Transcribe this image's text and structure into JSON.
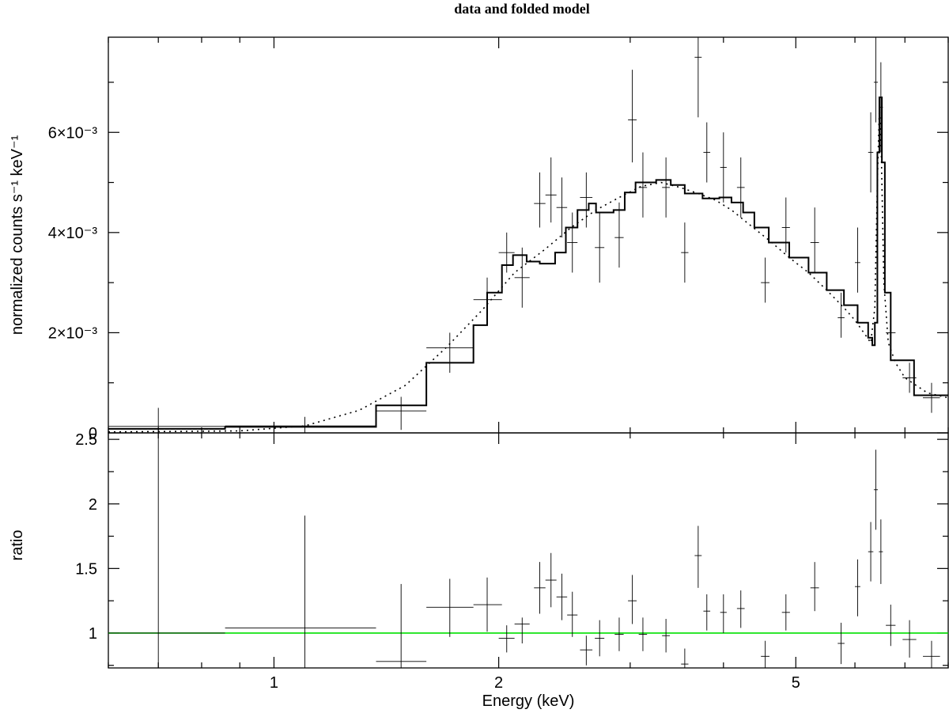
{
  "chart_data": {
    "type": "scatter",
    "title": "data and folded model",
    "xlabel": "Energy (keV)",
    "xscale": "log",
    "xlim": [
      0.6,
      8.0
    ],
    "x_ticks": [
      1,
      2,
      5
    ],
    "x_tick_labels": [
      "1",
      "2",
      "5"
    ],
    "grid": false,
    "legend": "none",
    "panels": [
      {
        "name": "spectrum",
        "ylabel": "normalized counts s⁻¹ keV⁻¹",
        "ylim": [
          0,
          0.0079
        ],
        "y_ticks": [
          0,
          0.002,
          0.004,
          0.006
        ],
        "y_tick_labels": [
          "0",
          "2×10⁻³",
          "4×10⁻³",
          "6×10⁻³"
        ],
        "data": [
          {
            "x": 0.7,
            "xlo": 0.55,
            "xhi": 0.86,
            "y": 0.00013,
            "ylo": 0.0,
            "yhi": 0.0005
          },
          {
            "x": 1.1,
            "xlo": 0.86,
            "xhi": 1.37,
            "y": 0.00014,
            "ylo": 0.0,
            "yhi": 0.00032
          },
          {
            "x": 1.48,
            "xlo": 1.37,
            "xhi": 1.6,
            "y": 0.00044,
            "ylo": 6e-05,
            "yhi": 0.00072
          },
          {
            "x": 1.72,
            "xlo": 1.6,
            "xhi": 1.85,
            "y": 0.0017,
            "ylo": 0.0012,
            "yhi": 0.002
          },
          {
            "x": 1.93,
            "xlo": 1.85,
            "xhi": 2.02,
            "y": 0.00266,
            "ylo": 0.0022,
            "yhi": 0.0031
          },
          {
            "x": 2.05,
            "xlo": 2.0,
            "xhi": 2.1,
            "y": 0.0036,
            "ylo": 0.0032,
            "yhi": 0.004
          },
          {
            "x": 2.15,
            "xlo": 2.1,
            "xhi": 2.2,
            "y": 0.0031,
            "ylo": 0.0025,
            "yhi": 0.0037
          },
          {
            "x": 2.27,
            "xlo": 2.23,
            "xhi": 2.31,
            "y": 0.00458,
            "ylo": 0.0041,
            "yhi": 0.0052
          },
          {
            "x": 2.35,
            "xlo": 2.31,
            "xhi": 2.39,
            "y": 0.00475,
            "ylo": 0.0042,
            "yhi": 0.0055
          },
          {
            "x": 2.43,
            "xlo": 2.39,
            "xhi": 2.47,
            "y": 0.0045,
            "ylo": 0.0039,
            "yhi": 0.0051
          },
          {
            "x": 2.51,
            "xlo": 2.47,
            "xhi": 2.55,
            "y": 0.0038,
            "ylo": 0.0032,
            "yhi": 0.0044
          },
          {
            "x": 2.62,
            "xlo": 2.57,
            "xhi": 2.67,
            "y": 0.0047,
            "ylo": 0.0041,
            "yhi": 0.0052
          },
          {
            "x": 2.73,
            "xlo": 2.69,
            "xhi": 2.77,
            "y": 0.0037,
            "ylo": 0.003,
            "yhi": 0.0044
          },
          {
            "x": 2.9,
            "xlo": 2.86,
            "xhi": 2.94,
            "y": 0.0039,
            "ylo": 0.0033,
            "yhi": 0.0046
          },
          {
            "x": 3.02,
            "xlo": 2.98,
            "xhi": 3.06,
            "y": 0.00625,
            "ylo": 0.0054,
            "yhi": 0.00725
          },
          {
            "x": 3.12,
            "xlo": 3.08,
            "xhi": 3.16,
            "y": 0.0049,
            "ylo": 0.0043,
            "yhi": 0.0056
          },
          {
            "x": 3.35,
            "xlo": 3.31,
            "xhi": 3.39,
            "y": 0.0049,
            "ylo": 0.0043,
            "yhi": 0.0055
          },
          {
            "x": 3.55,
            "xlo": 3.51,
            "xhi": 3.59,
            "y": 0.0036,
            "ylo": 0.003,
            "yhi": 0.0042
          },
          {
            "x": 3.7,
            "xlo": 3.66,
            "xhi": 3.74,
            "y": 0.0075,
            "ylo": 0.0063,
            "yhi": 0.0079
          },
          {
            "x": 3.8,
            "xlo": 3.76,
            "xhi": 3.84,
            "y": 0.0056,
            "ylo": 0.005,
            "yhi": 0.0062
          },
          {
            "x": 4.0,
            "xlo": 3.96,
            "xhi": 4.04,
            "y": 0.0053,
            "ylo": 0.0046,
            "yhi": 0.006
          },
          {
            "x": 4.22,
            "xlo": 4.17,
            "xhi": 4.27,
            "y": 0.0049,
            "ylo": 0.0043,
            "yhi": 0.0055
          },
          {
            "x": 4.55,
            "xlo": 4.49,
            "xhi": 4.61,
            "y": 0.003,
            "ylo": 0.0026,
            "yhi": 0.0035
          },
          {
            "x": 4.85,
            "xlo": 4.79,
            "xhi": 4.91,
            "y": 0.0041,
            "ylo": 0.0036,
            "yhi": 0.0047
          },
          {
            "x": 5.3,
            "xlo": 5.23,
            "xhi": 5.37,
            "y": 0.0038,
            "ylo": 0.0032,
            "yhi": 0.0045
          },
          {
            "x": 5.75,
            "xlo": 5.69,
            "xhi": 5.81,
            "y": 0.0023,
            "ylo": 0.0019,
            "yhi": 0.0028
          },
          {
            "x": 6.05,
            "xlo": 6.0,
            "xhi": 6.1,
            "y": 0.0034,
            "ylo": 0.0028,
            "yhi": 0.0041
          },
          {
            "x": 6.3,
            "xlo": 6.25,
            "xhi": 6.35,
            "y": 0.0056,
            "ylo": 0.0048,
            "yhi": 0.0064
          },
          {
            "x": 6.4,
            "xlo": 6.36,
            "xhi": 6.44,
            "y": 0.007,
            "ylo": 0.0062,
            "yhi": 0.0079
          },
          {
            "x": 6.5,
            "xlo": 6.46,
            "xhi": 6.54,
            "y": 0.0065,
            "ylo": 0.0056,
            "yhi": 0.0074
          },
          {
            "x": 6.7,
            "xlo": 6.6,
            "xhi": 6.8,
            "y": 0.002,
            "ylo": 0.0016,
            "yhi": 0.0024
          },
          {
            "x": 7.1,
            "xlo": 6.95,
            "xhi": 7.25,
            "y": 0.0011,
            "ylo": 0.0008,
            "yhi": 0.0014
          },
          {
            "x": 7.6,
            "xlo": 7.4,
            "xhi": 7.8,
            "y": 0.0007,
            "ylo": 0.0004,
            "yhi": 0.001
          }
        ],
        "model_step": [
          [
            0.6,
            8e-05
          ],
          [
            0.86,
            0.00012
          ],
          [
            1.37,
            0.00055
          ],
          [
            1.6,
            0.0014
          ],
          [
            1.85,
            0.00215
          ],
          [
            1.93,
            0.0028
          ],
          [
            2.02,
            0.00335
          ],
          [
            2.09,
            0.00355
          ],
          [
            2.18,
            0.00342
          ],
          [
            2.27,
            0.00338
          ],
          [
            2.38,
            0.0036
          ],
          [
            2.46,
            0.0041
          ],
          [
            2.55,
            0.00445
          ],
          [
            2.64,
            0.00458
          ],
          [
            2.7,
            0.0044
          ],
          [
            2.85,
            0.00445
          ],
          [
            2.95,
            0.0048
          ],
          [
            3.05,
            0.005
          ],
          [
            3.25,
            0.00505
          ],
          [
            3.4,
            0.00495
          ],
          [
            3.55,
            0.00478
          ],
          [
            3.75,
            0.00468
          ],
          [
            3.95,
            0.0047
          ],
          [
            4.1,
            0.0046
          ],
          [
            4.25,
            0.0044
          ],
          [
            4.4,
            0.0041
          ],
          [
            4.6,
            0.0038
          ],
          [
            4.9,
            0.0035
          ],
          [
            5.2,
            0.0032
          ],
          [
            5.5,
            0.00285
          ],
          [
            5.8,
            0.00255
          ],
          [
            6.05,
            0.0022
          ],
          [
            6.25,
            0.0019
          ],
          [
            6.33,
            0.00175
          ],
          [
            6.38,
            0.0022
          ],
          [
            6.43,
            0.0056
          ],
          [
            6.47,
            0.0067
          ],
          [
            6.52,
            0.0054
          ],
          [
            6.58,
            0.0028
          ],
          [
            6.7,
            0.00145
          ],
          [
            7.2,
            0.00075
          ],
          [
            8.0,
            0.00075
          ]
        ],
        "model_smooth": [
          [
            0.6,
            2e-05
          ],
          [
            0.9,
            4e-05
          ],
          [
            1.1,
            0.00014
          ],
          [
            1.3,
            0.00045
          ],
          [
            1.5,
            0.00095
          ],
          [
            1.7,
            0.0017
          ],
          [
            1.9,
            0.00245
          ],
          [
            2.1,
            0.0032
          ],
          [
            2.3,
            0.00365
          ],
          [
            2.5,
            0.0041
          ],
          [
            2.7,
            0.00445
          ],
          [
            2.9,
            0.0047
          ],
          [
            3.1,
            0.00492
          ],
          [
            3.3,
            0.005
          ],
          [
            3.5,
            0.0049
          ],
          [
            3.7,
            0.00478
          ],
          [
            3.9,
            0.00465
          ],
          [
            4.1,
            0.00445
          ],
          [
            4.3,
            0.0042
          ],
          [
            4.6,
            0.00385
          ],
          [
            4.9,
            0.0035
          ],
          [
            5.2,
            0.0032
          ],
          [
            5.5,
            0.00285
          ],
          [
            5.8,
            0.0025
          ],
          [
            6.0,
            0.00225
          ],
          [
            6.2,
            0.00195
          ],
          [
            6.3,
            0.0018
          ],
          [
            6.38,
            0.0025
          ],
          [
            6.43,
            0.005
          ],
          [
            6.47,
            0.0065
          ],
          [
            6.51,
            0.0055
          ],
          [
            6.56,
            0.003
          ],
          [
            6.65,
            0.0018
          ],
          [
            6.8,
            0.0014
          ],
          [
            7.0,
            0.0011
          ],
          [
            7.5,
            0.0008
          ],
          [
            8.0,
            0.0007
          ]
        ]
      },
      {
        "name": "ratio",
        "ylabel": "ratio",
        "ylim": [
          0.73,
          2.55
        ],
        "y_ticks": [
          1,
          1.5,
          2,
          2.5
        ],
        "y_tick_labels": [
          "1",
          "1.5",
          "2",
          "2.5"
        ],
        "reference_line": 1,
        "data": [
          {
            "x": 0.7,
            "xlo": 0.55,
            "xhi": 0.86,
            "y": 1.0,
            "ylo": 0.73,
            "yhi": 2.55
          },
          {
            "x": 1.1,
            "xlo": 0.86,
            "xhi": 1.37,
            "y": 1.04,
            "ylo": 0.73,
            "yhi": 1.91
          },
          {
            "x": 1.48,
            "xlo": 1.37,
            "xhi": 1.6,
            "y": 0.78,
            "ylo": 0.73,
            "yhi": 1.38
          },
          {
            "x": 1.72,
            "xlo": 1.6,
            "xhi": 1.85,
            "y": 1.2,
            "ylo": 0.97,
            "yhi": 1.42
          },
          {
            "x": 1.93,
            "xlo": 1.85,
            "xhi": 2.02,
            "y": 1.22,
            "ylo": 1.01,
            "yhi": 1.43
          },
          {
            "x": 2.05,
            "xlo": 2.0,
            "xhi": 2.1,
            "y": 0.96,
            "ylo": 0.85,
            "yhi": 1.06
          },
          {
            "x": 2.15,
            "xlo": 2.1,
            "xhi": 2.2,
            "y": 1.07,
            "ylo": 0.92,
            "yhi": 1.12
          },
          {
            "x": 2.27,
            "xlo": 2.23,
            "xhi": 2.31,
            "y": 1.35,
            "ylo": 1.15,
            "yhi": 1.55
          },
          {
            "x": 2.35,
            "xlo": 2.31,
            "xhi": 2.39,
            "y": 1.41,
            "ylo": 1.2,
            "yhi": 1.62
          },
          {
            "x": 2.43,
            "xlo": 2.39,
            "xhi": 2.47,
            "y": 1.28,
            "ylo": 1.1,
            "yhi": 1.46
          },
          {
            "x": 2.51,
            "xlo": 2.47,
            "xhi": 2.55,
            "y": 1.14,
            "ylo": 0.97,
            "yhi": 1.32
          },
          {
            "x": 2.62,
            "xlo": 2.57,
            "xhi": 2.67,
            "y": 0.87,
            "ylo": 0.75,
            "yhi": 0.98
          },
          {
            "x": 2.73,
            "xlo": 2.69,
            "xhi": 2.77,
            "y": 0.96,
            "ylo": 0.82,
            "yhi": 1.1
          },
          {
            "x": 2.9,
            "xlo": 2.86,
            "xhi": 2.94,
            "y": 0.99,
            "ylo": 0.86,
            "yhi": 1.12
          },
          {
            "x": 3.02,
            "xlo": 2.98,
            "xhi": 3.06,
            "y": 1.25,
            "ylo": 1.07,
            "yhi": 1.45
          },
          {
            "x": 3.12,
            "xlo": 3.08,
            "xhi": 3.16,
            "y": 0.99,
            "ylo": 0.86,
            "yhi": 1.12
          },
          {
            "x": 3.35,
            "xlo": 3.31,
            "xhi": 3.39,
            "y": 0.98,
            "ylo": 0.85,
            "yhi": 1.11
          },
          {
            "x": 3.55,
            "xlo": 3.51,
            "xhi": 3.59,
            "y": 0.76,
            "ylo": 0.73,
            "yhi": 0.88
          },
          {
            "x": 3.7,
            "xlo": 3.66,
            "xhi": 3.74,
            "y": 1.6,
            "ylo": 1.35,
            "yhi": 1.83
          },
          {
            "x": 3.8,
            "xlo": 3.76,
            "xhi": 3.84,
            "y": 1.17,
            "ylo": 1.02,
            "yhi": 1.3
          },
          {
            "x": 4.0,
            "xlo": 3.96,
            "xhi": 4.04,
            "y": 1.16,
            "ylo": 1.0,
            "yhi": 1.3
          },
          {
            "x": 4.22,
            "xlo": 4.17,
            "xhi": 4.27,
            "y": 1.19,
            "ylo": 1.04,
            "yhi": 1.33
          },
          {
            "x": 4.55,
            "xlo": 4.49,
            "xhi": 4.61,
            "y": 0.82,
            "ylo": 0.73,
            "yhi": 0.94
          },
          {
            "x": 4.85,
            "xlo": 4.79,
            "xhi": 4.91,
            "y": 1.16,
            "ylo": 1.02,
            "yhi": 1.3
          },
          {
            "x": 5.3,
            "xlo": 5.23,
            "xhi": 5.37,
            "y": 1.35,
            "ylo": 1.17,
            "yhi": 1.55
          },
          {
            "x": 5.75,
            "xlo": 5.69,
            "xhi": 5.81,
            "y": 0.92,
            "ylo": 0.76,
            "yhi": 1.08
          },
          {
            "x": 6.05,
            "xlo": 6.0,
            "xhi": 6.1,
            "y": 1.36,
            "ylo": 1.13,
            "yhi": 1.57
          },
          {
            "x": 6.3,
            "xlo": 6.25,
            "xhi": 6.35,
            "y": 1.63,
            "ylo": 1.4,
            "yhi": 1.86
          },
          {
            "x": 6.4,
            "xlo": 6.36,
            "xhi": 6.44,
            "y": 2.11,
            "ylo": 1.8,
            "yhi": 2.42
          },
          {
            "x": 6.5,
            "xlo": 6.46,
            "xhi": 6.54,
            "y": 1.63,
            "ylo": 1.38,
            "yhi": 1.88
          },
          {
            "x": 6.7,
            "xlo": 6.6,
            "xhi": 6.8,
            "y": 1.06,
            "ylo": 0.9,
            "yhi": 1.22
          },
          {
            "x": 7.1,
            "xlo": 6.95,
            "xhi": 7.25,
            "y": 0.95,
            "ylo": 0.81,
            "yhi": 1.1
          },
          {
            "x": 7.6,
            "xlo": 7.4,
            "xhi": 7.8,
            "y": 0.82,
            "ylo": 0.73,
            "yhi": 0.94
          }
        ]
      }
    ]
  },
  "colors": {
    "frame": "#000000",
    "data": "#000000",
    "model": "#000000",
    "reference_line": "#00e000"
  }
}
